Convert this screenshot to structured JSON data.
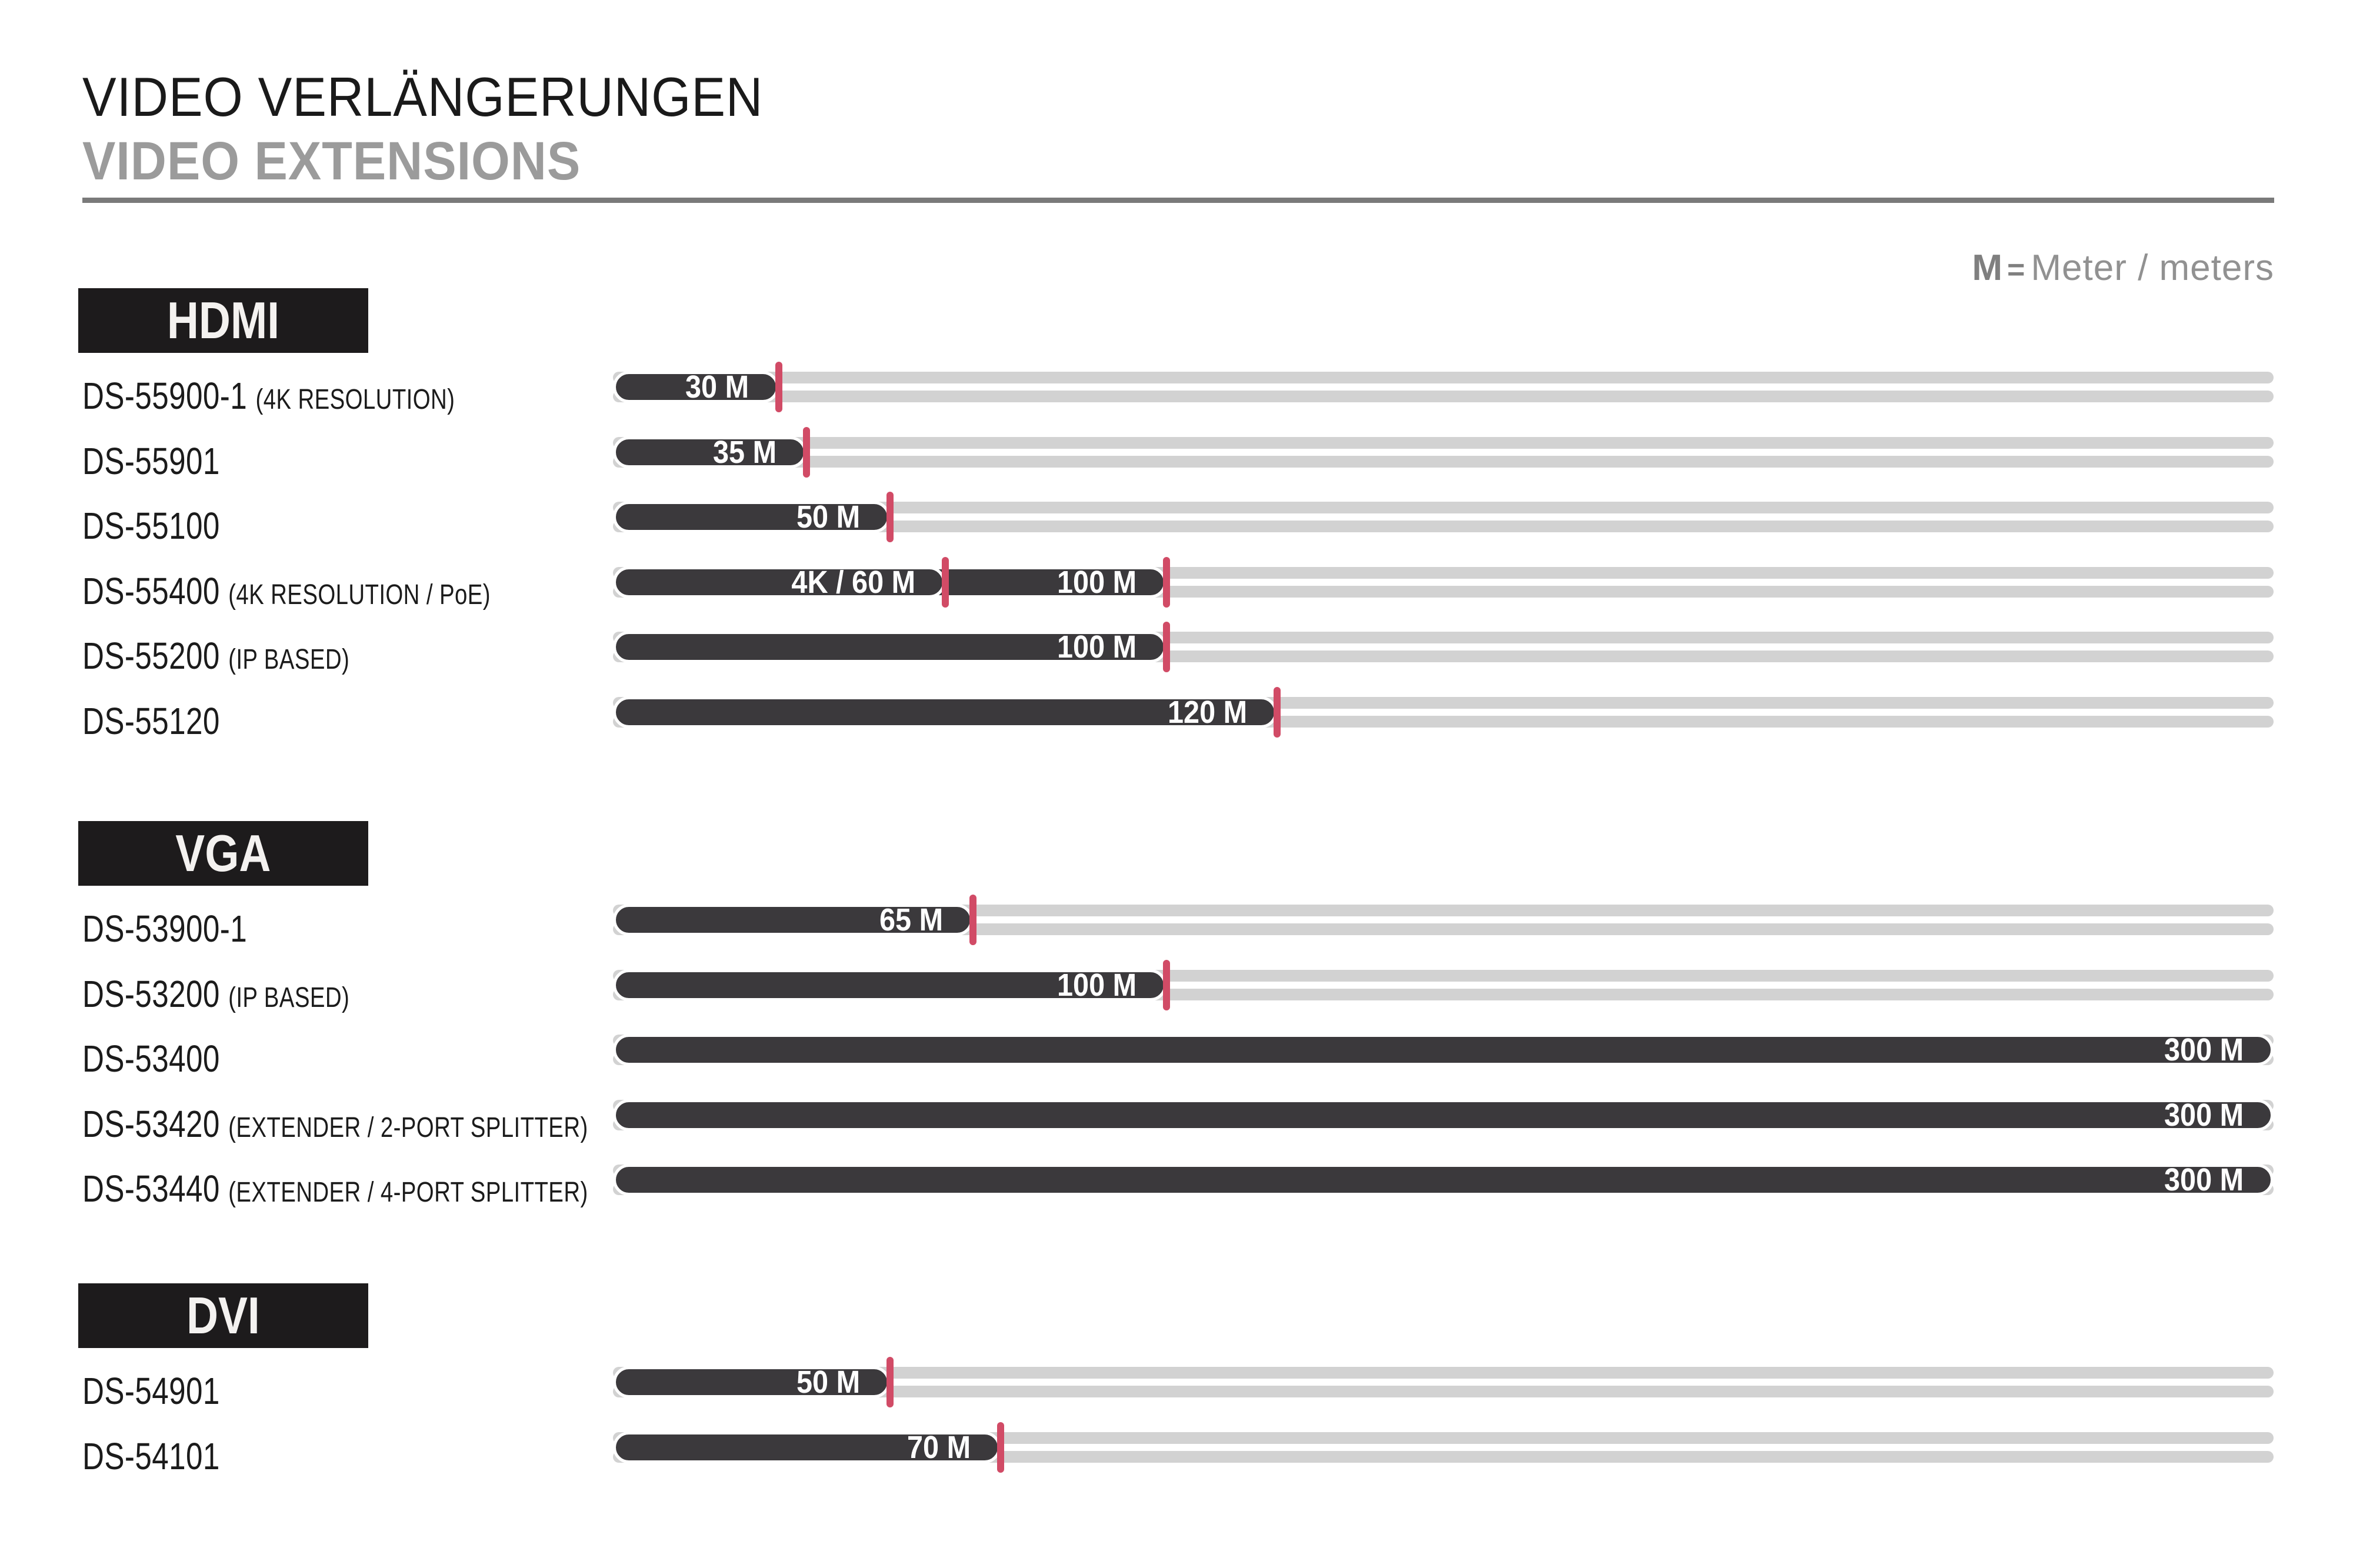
{
  "page": {
    "title_de": "VIDEO VERLÄNGERUNGEN",
    "title_en": "VIDEO EXTENSIONS"
  },
  "legend": {
    "symbol": "M",
    "equals": "=",
    "label": "Meter / meters"
  },
  "colors": {
    "bar_dark": "#3b393c",
    "track_gray": "#d2d2d2",
    "marker_red": "#d14b66",
    "header_box_black": "#1d1b1c",
    "title_black": "#1a1a1a",
    "title_gray": "#9b9b9b",
    "divider_gray": "#7a7a7a",
    "legend_gray": "#8c8c8c"
  },
  "chart_data": {
    "type": "bar",
    "title": "VIDEO VERLÄNGERUNGEN / VIDEO EXTENSIONS",
    "unit": "M",
    "axis_max_meters": 300,
    "legend": "M = Meter / meters",
    "grid": false,
    "sections": [
      {
        "label": "HDMI",
        "rows": [
          {
            "product": "DS-55900-1",
            "note": "(4K RESOLUTION)",
            "segments": [
              {
                "label": "30 M",
                "meters": 30,
                "marker": true
              }
            ]
          },
          {
            "product": "DS-55901",
            "note": "",
            "segments": [
              {
                "label": "35 M",
                "meters": 35,
                "marker": true
              }
            ]
          },
          {
            "product": "DS-55100",
            "note": "",
            "segments": [
              {
                "label": "50 M",
                "meters": 50,
                "marker": true
              }
            ]
          },
          {
            "product": "DS-55400",
            "note": "(4K RESOLUTION / PoE)",
            "segments": [
              {
                "label": "4K / 60 M",
                "meters": 60,
                "marker": true
              },
              {
                "label": "100 M",
                "meters": 100,
                "marker": true
              }
            ]
          },
          {
            "product": "DS-55200",
            "note": "(IP BASED)",
            "segments": [
              {
                "label": "100 M",
                "meters": 100,
                "marker": true
              }
            ]
          },
          {
            "product": "DS-55120",
            "note": "",
            "segments": [
              {
                "label": "120 M",
                "meters": 120,
                "marker": true
              }
            ]
          }
        ]
      },
      {
        "label": "VGA",
        "rows": [
          {
            "product": "DS-53900-1",
            "note": "",
            "segments": [
              {
                "label": "65 M",
                "meters": 65,
                "marker": true
              }
            ]
          },
          {
            "product": "DS-53200",
            "note": "(IP BASED)",
            "segments": [
              {
                "label": "100 M",
                "meters": 100,
                "marker": true
              }
            ]
          },
          {
            "product": "DS-53400",
            "note": "",
            "segments": [
              {
                "label": "300 M",
                "meters": 300,
                "marker": false
              }
            ]
          },
          {
            "product": "DS-53420",
            "note": "(EXTENDER / 2-PORT SPLITTER)",
            "segments": [
              {
                "label": "300 M",
                "meters": 300,
                "marker": false
              }
            ]
          },
          {
            "product": "DS-53440",
            "note": "(EXTENDER / 4-PORT SPLITTER)",
            "segments": [
              {
                "label": "300 M",
                "meters": 300,
                "marker": false
              }
            ]
          }
        ]
      },
      {
        "label": "DVI",
        "rows": [
          {
            "product": "DS-54901",
            "note": "",
            "segments": [
              {
                "label": "50 M",
                "meters": 50,
                "marker": true
              }
            ]
          },
          {
            "product": "DS-54101",
            "note": "",
            "segments": [
              {
                "label": "70 M",
                "meters": 70,
                "marker": true
              }
            ]
          }
        ]
      }
    ]
  }
}
